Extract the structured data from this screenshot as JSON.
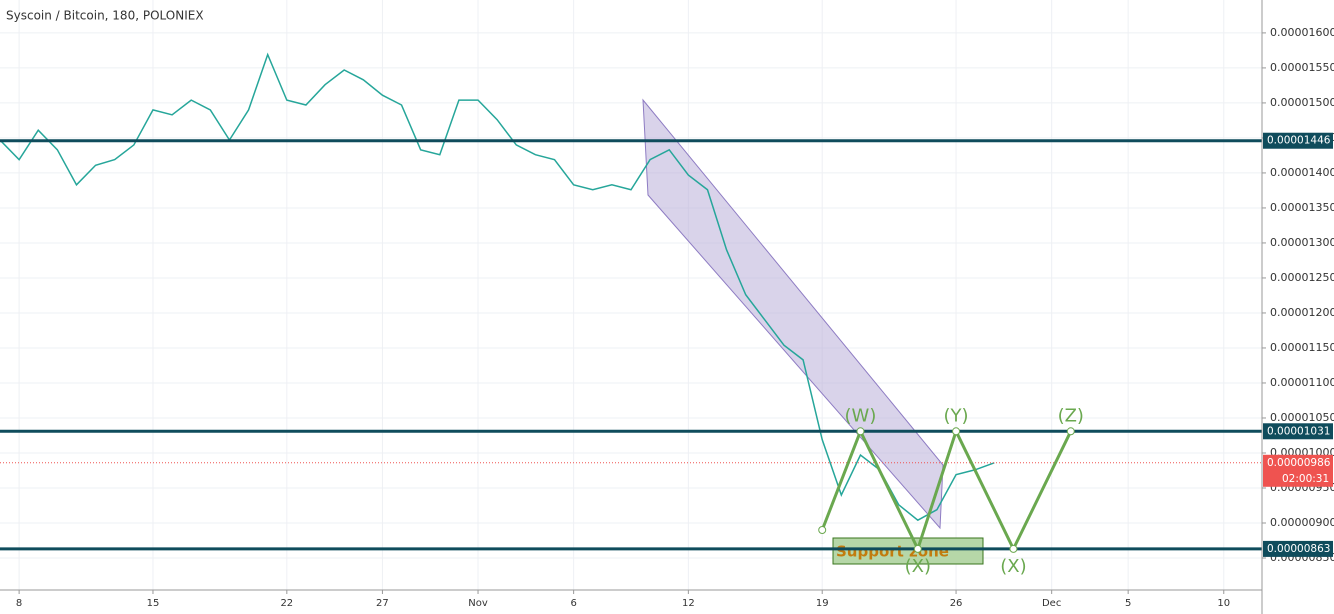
{
  "chart_data": {
    "type": "line",
    "title": "Syscoin / Bitcoin, 180, POLONIEX",
    "x": [
      "10-07",
      "10-08",
      "10-09",
      "10-10",
      "10-11",
      "10-12",
      "10-13",
      "10-14",
      "10-15",
      "10-16",
      "10-17",
      "10-18",
      "10-19",
      "10-20",
      "10-21",
      "10-22",
      "10-23",
      "10-24",
      "10-25",
      "10-26",
      "10-27",
      "10-28",
      "10-29",
      "10-30",
      "10-31",
      "11-01",
      "11-02",
      "11-03",
      "11-04",
      "11-05",
      "11-06",
      "11-07",
      "11-08",
      "11-09",
      "11-10",
      "11-11",
      "11-12",
      "11-13",
      "11-14",
      "11-15",
      "11-16",
      "11-17",
      "11-18",
      "11-19",
      "11-20",
      "11-21",
      "11-22",
      "11-23",
      "11-24",
      "11-25",
      "11-26",
      "11-27",
      "11-28"
    ],
    "series": [
      {
        "color": "#26a69a",
        "values": [
          1.447e-05,
          1.419e-05,
          1.461e-05,
          1.433e-05,
          1.383e-05,
          1.411e-05,
          1.419e-05,
          1.44e-05,
          1.49e-05,
          1.483e-05,
          1.504e-05,
          1.49e-05,
          1.447e-05,
          1.49e-05,
          1.569e-05,
          1.504e-05,
          1.497e-05,
          1.526e-05,
          1.547e-05,
          1.533e-05,
          1.511e-05,
          1.497e-05,
          1.433e-05,
          1.426e-05,
          1.504e-05,
          1.504e-05,
          1.476e-05,
          1.44e-05,
          1.426e-05,
          1.419e-05,
          1.383e-05,
          1.376e-05,
          1.383e-05,
          1.376e-05,
          1.419e-05,
          1.433e-05,
          1.397e-05,
          1.376e-05,
          1.29e-05,
          1.226e-05,
          1.19e-05,
          1.154e-05,
          1.133e-05,
          1.019e-05,
          9.4e-06,
          9.97e-06,
          9.76e-06,
          9.26e-06,
          9.04e-06,
          9.19e-06,
          9.69e-06,
          9.76e-06,
          9.86e-06
        ]
      }
    ],
    "xlim": [
      "10-07",
      "12-12"
    ],
    "xticks": [
      {
        "value": "10-08",
        "label": "8"
      },
      {
        "value": "10-15",
        "label": "15"
      },
      {
        "value": "10-22",
        "label": "22"
      },
      {
        "value": "10-27",
        "label": "27"
      },
      {
        "value": "11-01",
        "label": "Nov"
      },
      {
        "value": "11-06",
        "label": "6"
      },
      {
        "value": "11-12",
        "label": "12"
      },
      {
        "value": "11-19",
        "label": "19"
      },
      {
        "value": "11-26",
        "label": "26"
      },
      {
        "value": "12-01",
        "label": "Dec"
      },
      {
        "value": "12-05",
        "label": "5"
      },
      {
        "value": "12-10",
        "label": "10"
      }
    ],
    "ylim": [
      8.043e-06,
      1.647e-05
    ],
    "yticks": [
      {
        "value": 8.5e-06,
        "label": "0.00000850"
      },
      {
        "value": 9e-06,
        "label": "0.00000900"
      },
      {
        "value": 9.5e-06,
        "label": "0.00000950"
      },
      {
        "value": 1e-05,
        "label": "0.00001000"
      },
      {
        "value": 1.05e-05,
        "label": "0.00001050"
      },
      {
        "value": 1.1e-05,
        "label": "0.00001100"
      },
      {
        "value": 1.15e-05,
        "label": "0.00001150"
      },
      {
        "value": 1.2e-05,
        "label": "0.00001200"
      },
      {
        "value": 1.25e-05,
        "label": "0.00001250"
      },
      {
        "value": 1.3e-05,
        "label": "0.00001300"
      },
      {
        "value": 1.35e-05,
        "label": "0.00001350"
      },
      {
        "value": 1.4e-05,
        "label": "0.00001400"
      },
      {
        "value": 1.45e-05,
        "label": "0.00001450"
      },
      {
        "value": 1.5e-05,
        "label": "0.00001500"
      },
      {
        "value": 1.55e-05,
        "label": "0.00001550"
      },
      {
        "value": 1.6e-05,
        "label": "0.00001600"
      }
    ],
    "grid": true,
    "levels": [
      {
        "value": 1.446e-05,
        "label": "0.00001446"
      },
      {
        "value": 1.031e-05,
        "label": "0.00001031"
      },
      {
        "value": 8.63e-06,
        "label": "0.00000863"
      }
    ],
    "level_color": "#0f4c5c",
    "last_price": {
      "value": 9.86e-06,
      "label": "0.00000986"
    },
    "countdown": "02:00:31",
    "last_color": "#ef5350",
    "wave": {
      "color": "#6aa84f",
      "x": [
        "11-19",
        "11-21",
        "11-24",
        "11-26",
        "11-29",
        "12-02"
      ],
      "values": [
        8.9e-06,
        1.031e-05,
        8.63e-06,
        1.031e-05,
        8.63e-06,
        1.031e-05
      ],
      "labels": [
        null,
        "(W)",
        "(X)",
        "(Y)",
        "(X)",
        "(Z)"
      ]
    },
    "zone_label": "Support zone"
  }
}
